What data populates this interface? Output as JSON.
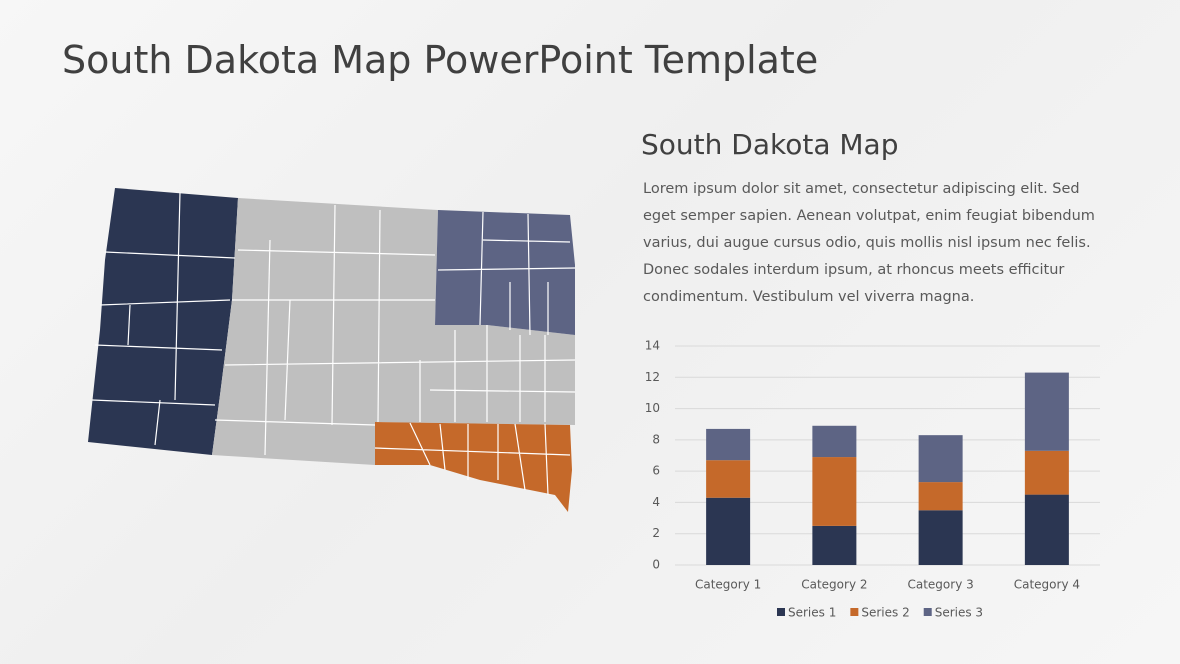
{
  "title": "South Dakota Map PowerPoint Template",
  "subtitle": "South Dakota Map",
  "body": "Lorem ipsum dolor sit amet, consectetur adipiscing elit. Sed eget semper sapien. Aenean volutpat, enim feugiat bibendum varius, dui augue cursus odio, quis mollis nisl ipsum nec felis. Donec sodales interdum ipsum, at rhoncus meets efficitur condimentum. Vestibulum vel viverra magna.",
  "chart_data": {
    "type": "stacked_bar",
    "categories": [
      "Category 1",
      "Category 2",
      "Category 3",
      "Category 4"
    ],
    "series": [
      {
        "name": "Series 1",
        "color": "#2b3652",
        "values": [
          4.3,
          2.5,
          3.5,
          4.5
        ]
      },
      {
        "name": "Series 2",
        "color": "#c5692a",
        "values": [
          2.4,
          4.4,
          1.8,
          2.8
        ]
      },
      {
        "name": "Series 3",
        "color": "#5d6484",
        "values": [
          2,
          2,
          3,
          5
        ]
      }
    ],
    "ylim": [
      0,
      14
    ],
    "yticks": [
      0,
      2,
      4,
      6,
      8,
      10,
      12,
      14
    ],
    "grid": true,
    "legend": "bottom"
  }
}
